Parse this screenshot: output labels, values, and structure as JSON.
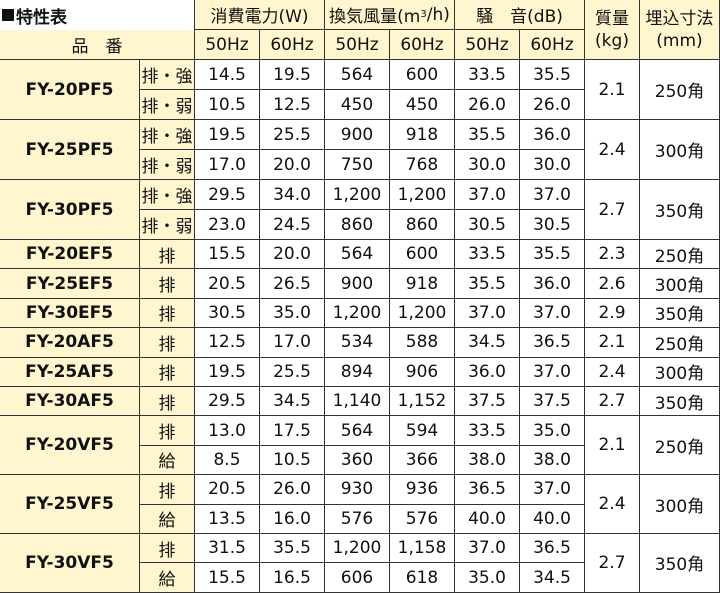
{
  "title": "特性表",
  "headers": {
    "product": "品　番",
    "power": "消費電力(W)",
    "airflow_pre": "換気風量(m",
    "airflow_sup": "3",
    "airflow_post": "/h)",
    "noise": "騒　音(dB)",
    "mass": "質量\n(kg)",
    "cutout": "埋込寸法\n(mm)",
    "hz50": "50Hz",
    "hz60": "60Hz"
  },
  "rows": [
    {
      "model": "FY-20PF5",
      "mass": "2.1",
      "cutout": "250角",
      "modes": [
        {
          "mode": "排・強",
          "p50": "14.5",
          "p60": "19.5",
          "a50": "564",
          "a60": "600",
          "n50": "33.5",
          "n60": "35.5"
        },
        {
          "mode": "排・弱",
          "p50": "10.5",
          "p60": "12.5",
          "a50": "450",
          "a60": "450",
          "n50": "26.0",
          "n60": "26.0"
        }
      ]
    },
    {
      "model": "FY-25PF5",
      "mass": "2.4",
      "cutout": "300角",
      "modes": [
        {
          "mode": "排・強",
          "p50": "19.5",
          "p60": "25.5",
          "a50": "900",
          "a60": "918",
          "n50": "35.5",
          "n60": "36.0"
        },
        {
          "mode": "排・弱",
          "p50": "17.0",
          "p60": "20.0",
          "a50": "750",
          "a60": "768",
          "n50": "30.0",
          "n60": "30.0"
        }
      ]
    },
    {
      "model": "FY-30PF5",
      "mass": "2.7",
      "cutout": "350角",
      "modes": [
        {
          "mode": "排・強",
          "p50": "29.5",
          "p60": "34.0",
          "a50": "1,200",
          "a60": "1,200",
          "n50": "37.0",
          "n60": "37.0"
        },
        {
          "mode": "排・弱",
          "p50": "23.0",
          "p60": "24.5",
          "a50": "860",
          "a60": "860",
          "n50": "30.5",
          "n60": "30.5"
        }
      ]
    },
    {
      "model": "FY-20EF5",
      "mass": "2.3",
      "cutout": "250角",
      "modes": [
        {
          "mode": "排",
          "p50": "15.5",
          "p60": "20.0",
          "a50": "564",
          "a60": "600",
          "n50": "33.5",
          "n60": "35.5"
        }
      ]
    },
    {
      "model": "FY-25EF5",
      "mass": "2.6",
      "cutout": "300角",
      "modes": [
        {
          "mode": "排",
          "p50": "20.5",
          "p60": "26.5",
          "a50": "900",
          "a60": "918",
          "n50": "35.5",
          "n60": "36.0"
        }
      ]
    },
    {
      "model": "FY-30EF5",
      "mass": "2.9",
      "cutout": "350角",
      "modes": [
        {
          "mode": "排",
          "p50": "30.5",
          "p60": "35.0",
          "a50": "1,200",
          "a60": "1,200",
          "n50": "37.0",
          "n60": "37.0"
        }
      ]
    },
    {
      "model": "FY-20AF5",
      "mass": "2.1",
      "cutout": "250角",
      "modes": [
        {
          "mode": "排",
          "p50": "12.5",
          "p60": "17.0",
          "a50": "534",
          "a60": "588",
          "n50": "34.5",
          "n60": "36.5"
        }
      ]
    },
    {
      "model": "FY-25AF5",
      "mass": "2.4",
      "cutout": "300角",
      "modes": [
        {
          "mode": "排",
          "p50": "19.5",
          "p60": "25.5",
          "a50": "894",
          "a60": "906",
          "n50": "36.0",
          "n60": "37.0"
        }
      ]
    },
    {
      "model": "FY-30AF5",
      "mass": "2.7",
      "cutout": "350角",
      "modes": [
        {
          "mode": "排",
          "p50": "29.5",
          "p60": "34.5",
          "a50": "1,140",
          "a60": "1,152",
          "n50": "37.5",
          "n60": "37.5"
        }
      ]
    },
    {
      "model": "FY-20VF5",
      "mass": "2.1",
      "cutout": "250角",
      "modes": [
        {
          "mode": "排",
          "p50": "13.0",
          "p60": "17.5",
          "a50": "564",
          "a60": "594",
          "n50": "33.5",
          "n60": "35.0"
        },
        {
          "mode": "給",
          "p50": "8.5",
          "p60": "10.5",
          "a50": "360",
          "a60": "366",
          "n50": "38.0",
          "n60": "38.0"
        }
      ]
    },
    {
      "model": "FY-25VF5",
      "mass": "2.4",
      "cutout": "300角",
      "modes": [
        {
          "mode": "排",
          "p50": "20.5",
          "p60": "26.0",
          "a50": "930",
          "a60": "936",
          "n50": "36.5",
          "n60": "37.0"
        },
        {
          "mode": "給",
          "p50": "13.5",
          "p60": "16.0",
          "a50": "576",
          "a60": "576",
          "n50": "40.0",
          "n60": "40.0"
        }
      ]
    },
    {
      "model": "FY-30VF5",
      "mass": "2.7",
      "cutout": "350角",
      "modes": [
        {
          "mode": "排",
          "p50": "31.5",
          "p60": "35.5",
          "a50": "1,200",
          "a60": "1,158",
          "n50": "37.0",
          "n60": "36.5"
        },
        {
          "mode": "給",
          "p50": "15.5",
          "p60": "16.5",
          "a50": "606",
          "a60": "618",
          "n50": "35.0",
          "n60": "34.5"
        }
      ]
    }
  ]
}
